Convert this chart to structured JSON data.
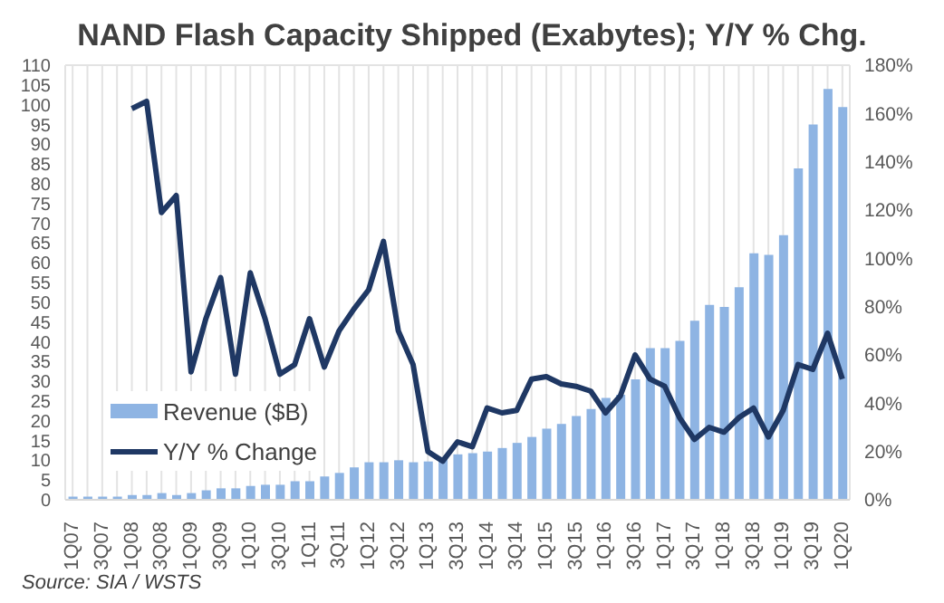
{
  "chart_data": {
    "type": "bar",
    "title": "NAND Flash Capacity Shipped (Exabytes); Y/Y % Chg.",
    "categories": [
      "1Q07",
      null,
      "3Q07",
      null,
      "1Q08",
      null,
      "3Q08",
      null,
      "1Q09",
      null,
      "3Q09",
      null,
      "1Q10",
      null,
      "3Q10",
      null,
      "1Q11",
      null,
      "3Q11",
      null,
      "1Q12",
      null,
      "3Q12",
      null,
      "1Q13",
      null,
      "3Q13",
      null,
      "1Q14",
      null,
      "3Q14",
      null,
      "1Q15",
      null,
      "3Q15",
      null,
      "1Q16",
      null,
      "3Q16",
      null,
      "1Q17",
      null,
      "3Q17",
      null,
      "1Q18",
      null,
      "3Q18",
      null,
      "1Q19",
      null,
      "3Q19",
      null,
      "1Q20"
    ],
    "series": [
      {
        "name": "Revenue ($B)",
        "color": "#8eb4e3",
        "values": [
          0.8,
          0.8,
          0.8,
          0.8,
          1.2,
          1.2,
          1.7,
          1.2,
          1.7,
          2.4,
          2.9,
          2.9,
          3.5,
          3.8,
          3.8,
          4.7,
          4.7,
          5.9,
          6.8,
          8.2,
          9.5,
          9.5,
          10,
          9.5,
          9.7,
          10.8,
          11.5,
          11.8,
          12.2,
          13.1,
          14.4,
          15.9,
          18,
          19.2,
          21.2,
          23,
          25.8,
          26.6,
          30.5,
          38.4,
          38.4,
          40.2,
          45.3,
          49.3,
          48.8,
          53.8,
          62.4,
          62,
          67,
          83.9,
          95,
          104,
          99.4
        ]
      },
      {
        "name": "Y/Y % Change",
        "type": "line",
        "axis": "y2",
        "color": "#1f3864",
        "values": [
          null,
          null,
          null,
          null,
          162,
          165,
          119,
          126,
          53,
          75,
          92,
          52,
          94,
          75,
          52,
          56,
          75,
          55,
          70,
          79,
          87,
          107,
          70,
          56,
          20,
          16,
          24,
          22,
          38,
          36,
          37,
          50,
          51,
          48,
          47,
          45,
          36,
          43,
          60,
          50,
          47,
          34,
          25,
          30,
          28,
          34,
          38,
          26,
          37,
          56,
          54,
          69,
          50
        ]
      }
    ],
    "ylim": [
      0,
      110
    ],
    "yticks": [
      0,
      5,
      10,
      15,
      20,
      25,
      30,
      35,
      40,
      45,
      50,
      55,
      60,
      65,
      70,
      75,
      80,
      85,
      90,
      95,
      100,
      105,
      110
    ],
    "y2lim": [
      0,
      180
    ],
    "y2ticks": [
      {
        "value": 0,
        "label": "0%"
      },
      {
        "value": 20,
        "label": "20%"
      },
      {
        "value": 40,
        "label": "40%"
      },
      {
        "value": 60,
        "label": "60%"
      },
      {
        "value": 80,
        "label": "80%"
      },
      {
        "value": 100,
        "label": "100%"
      },
      {
        "value": 120,
        "label": "120%"
      },
      {
        "value": 140,
        "label": "140%"
      },
      {
        "value": 160,
        "label": "160%"
      },
      {
        "value": 180,
        "label": "180%"
      }
    ],
    "grid": true,
    "legend": "bottom left",
    "marker": "none",
    "annotations": [
      "Source: SIA / WSTS"
    ]
  }
}
